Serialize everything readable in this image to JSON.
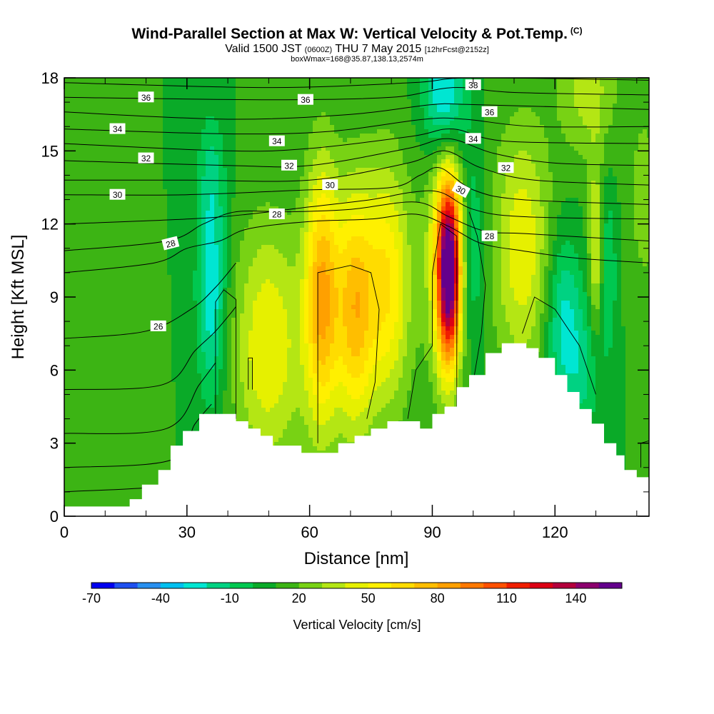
{
  "title": {
    "main": "Wind-Parallel Section at Max W: Vertical Velocity & Pot.Temp.",
    "main_suffix": "(C)",
    "valid_prefix": "Valid 1500 JST",
    "valid_z": "(0600Z)",
    "valid_date": "THU 7 May 2015",
    "valid_fcst": "[12hrFcst@2152z]",
    "box": "boxWmax=168@35.87,138.13,2574m"
  },
  "chart_data": {
    "type": "heatmap",
    "xlabel": "Distance [nm]",
    "ylabel": "Height [Kft MSL]",
    "xlim": [
      0,
      143
    ],
    "ylim": [
      0,
      18
    ],
    "x_ticks": [
      0,
      30,
      60,
      90,
      120
    ],
    "y_ticks": [
      0,
      3,
      6,
      9,
      12,
      15,
      18
    ],
    "colorbar": {
      "title": "Vertical Velocity [cm/s]",
      "tick_labels": [
        "-70",
        "-40",
        "-10",
        "20",
        "50",
        "80",
        "110",
        "140"
      ],
      "tick_values": [
        -70,
        -40,
        -10,
        20,
        50,
        80,
        110,
        140
      ],
      "range": [
        -70,
        150
      ],
      "step": 10,
      "colors": [
        "#0000f0",
        "#1e50f0",
        "#2890f0",
        "#00c0f0",
        "#00e6d2",
        "#00d282",
        "#00c850",
        "#0aaa28",
        "#3cb414",
        "#78d214",
        "#b4e614",
        "#e6f000",
        "#fff000",
        "#ffdc00",
        "#ffbe00",
        "#ffa000",
        "#ff7800",
        "#ff5000",
        "#f01e00",
        "#dc0014",
        "#b4003c",
        "#8c006e",
        "#64008c"
      ]
    },
    "terrain": [
      [
        0,
        0.4
      ],
      [
        15,
        0.4
      ],
      [
        16,
        0.7
      ],
      [
        19,
        1.3
      ],
      [
        23,
        1.9
      ],
      [
        26,
        2.9
      ],
      [
        29,
        3.5
      ],
      [
        33,
        4.2
      ],
      [
        39,
        4.2
      ],
      [
        42,
        3.9
      ],
      [
        45,
        3.6
      ],
      [
        48,
        3.3
      ],
      [
        51,
        2.9
      ],
      [
        55,
        2.9
      ],
      [
        58,
        2.6
      ],
      [
        62,
        2.6
      ],
      [
        67,
        3.0
      ],
      [
        71,
        3.3
      ],
      [
        75,
        3.6
      ],
      [
        79,
        3.9
      ],
      [
        83,
        3.9
      ],
      [
        87,
        3.6
      ],
      [
        90,
        4.2
      ],
      [
        93,
        4.5
      ],
      [
        96,
        5.3
      ],
      [
        99,
        5.8
      ],
      [
        103,
        6.7
      ],
      [
        107,
        7.1
      ],
      [
        110,
        7.1
      ],
      [
        113,
        6.9
      ],
      [
        116,
        6.5
      ],
      [
        120,
        5.8
      ],
      [
        123,
        5.1
      ],
      [
        126,
        4.4
      ],
      [
        129,
        3.8
      ],
      [
        132,
        3.0
      ],
      [
        135,
        2.5
      ],
      [
        137,
        1.9
      ],
      [
        140,
        1.6
      ],
      [
        143,
        1.6
      ]
    ],
    "w_field": [
      {
        "x": 5,
        "y": 14,
        "sx": 3,
        "sy": 2,
        "v": 18
      },
      {
        "x": 36,
        "y": 9,
        "sx": 2.5,
        "sy": 3,
        "v": -28
      },
      {
        "x": 36,
        "y": 14,
        "sx": 2.5,
        "sy": 2,
        "v": -8
      },
      {
        "x": 50,
        "y": 7,
        "sx": 6,
        "sy": 3.5,
        "v": 50
      },
      {
        "x": 63,
        "y": 9,
        "sx": 3,
        "sy": 3.8,
        "v": 80
      },
      {
        "x": 71,
        "y": 8.5,
        "sx": 3.3,
        "sy": 3.5,
        "v": 72
      },
      {
        "x": 79,
        "y": 9.5,
        "sx": 4,
        "sy": 3.5,
        "v": 60
      },
      {
        "x": 94,
        "y": 10,
        "sx": 2,
        "sy": 2.6,
        "v": 148
      },
      {
        "x": 93,
        "y": 11,
        "sx": 3.5,
        "sy": 3.6,
        "v": 45
      },
      {
        "x": 93,
        "y": 17.2,
        "sx": 3.5,
        "sy": 2,
        "v": -38
      },
      {
        "x": 100,
        "y": 11,
        "sx": 2,
        "sy": 3,
        "v": -12
      },
      {
        "x": 112,
        "y": 11,
        "sx": 5,
        "sy": 3.5,
        "v": 48
      },
      {
        "x": 122,
        "y": 8,
        "sx": 3,
        "sy": 2.5,
        "v": -24
      },
      {
        "x": 127,
        "y": 6,
        "sx": 3,
        "sy": 2,
        "v": -10
      },
      {
        "x": 130,
        "y": 11,
        "sx": 1.2,
        "sy": 2.5,
        "v": 44
      },
      {
        "x": 133,
        "y": 10,
        "sx": 1.5,
        "sy": 2.5,
        "v": -10
      },
      {
        "x": 128,
        "y": 17.5,
        "sx": 5,
        "sy": 2,
        "v": 35
      },
      {
        "x": 142,
        "y": 13,
        "sx": 3,
        "sy": 3,
        "v": 25
      }
    ],
    "theta_contours": [
      {
        "value": 26,
        "pts": [
          [
            0,
            1.0
          ],
          [
            30,
            1.4
          ],
          [
            34,
            2.8
          ],
          [
            38,
            4.2
          ]
        ],
        "label": "",
        "label_at": null
      },
      {
        "value": 26,
        "pts": [
          [
            0,
            2.0
          ],
          [
            26,
            2.3
          ],
          [
            32,
            3.8
          ],
          [
            36,
            4.6
          ]
        ],
        "label": "",
        "label_at": null
      },
      {
        "value": 26,
        "pts": [
          [
            0,
            3.4
          ],
          [
            25,
            3.6
          ],
          [
            33,
            5.4
          ],
          [
            37,
            6.3
          ]
        ],
        "label": "",
        "label_at": null
      },
      {
        "value": 26,
        "pts": [
          [
            0,
            5.2
          ],
          [
            24,
            5.4
          ],
          [
            32,
            6.8
          ],
          [
            37,
            7.6
          ],
          [
            42,
            8.6
          ]
        ],
        "label": "",
        "label_at": null
      },
      {
        "value": 26,
        "pts": [
          [
            0,
            7.3
          ],
          [
            20,
            7.6
          ],
          [
            31,
            8.5
          ],
          [
            37,
            9.4
          ],
          [
            42,
            10.4
          ]
        ],
        "label": "26",
        "label_at": [
          23,
          7.8
        ]
      },
      {
        "value": 28,
        "pts": [
          [
            0,
            10.0
          ],
          [
            22,
            10.4
          ],
          [
            30,
            11.0
          ],
          [
            38,
            11.3
          ],
          [
            45,
            11.8
          ],
          [
            60,
            12.1
          ],
          [
            75,
            12.2
          ],
          [
            86,
            12.4
          ],
          [
            94,
            11.9
          ],
          [
            102,
            11.2
          ],
          [
            112,
            10.9
          ],
          [
            125,
            10.6
          ],
          [
            143,
            10.4
          ]
        ],
        "label": "28",
        "label_at": [
          26,
          11.2
        ]
      },
      {
        "value": 28,
        "pts": [
          [
            0,
            10.9
          ],
          [
            25,
            11.3
          ],
          [
            34,
            12.0
          ],
          [
            42,
            12.5
          ],
          [
            55,
            12.5
          ],
          [
            70,
            12.6
          ],
          [
            86,
            12.9
          ],
          [
            94,
            12.3
          ],
          [
            103,
            11.7
          ],
          [
            113,
            11.6
          ],
          [
            143,
            11.3
          ]
        ],
        "label": "28",
        "label_at": [
          104,
          11.5
        ]
      },
      {
        "value": 28,
        "pts": [
          [
            0,
            12.0
          ],
          [
            30,
            12.2
          ],
          [
            45,
            12.4
          ],
          [
            60,
            12.7
          ],
          [
            75,
            13.0
          ],
          [
            85,
            13.3
          ],
          [
            92,
            13.3
          ],
          [
            100,
            12.6
          ],
          [
            112,
            12.3
          ],
          [
            143,
            12.2
          ]
        ],
        "label": "28",
        "label_at": [
          52,
          12.4
        ]
      },
      {
        "value": 30,
        "pts": [
          [
            0,
            13.2
          ],
          [
            30,
            13.2
          ],
          [
            60,
            13.4
          ],
          [
            80,
            13.5
          ],
          [
            87,
            14.0
          ],
          [
            92,
            14.3
          ],
          [
            100,
            13.4
          ],
          [
            112,
            13.0
          ],
          [
            143,
            12.8
          ]
        ],
        "label": "30",
        "label_at": [
          13,
          13.2
        ]
      },
      {
        "value": 30,
        "pts": [
          [
            0,
            13.8
          ],
          [
            30,
            13.8
          ],
          [
            60,
            13.8
          ],
          [
            84,
            14.5
          ],
          [
            93,
            15.0
          ],
          [
            102,
            14.3
          ],
          [
            115,
            13.8
          ],
          [
            143,
            13.6
          ]
        ],
        "label": "30",
        "label_at": [
          65,
          13.6
        ]
      },
      {
        "value": 32,
        "pts": [
          [
            0,
            14.6
          ],
          [
            40,
            14.4
          ],
          [
            60,
            14.4
          ],
          [
            84,
            15.1
          ],
          [
            94,
            15.5
          ],
          [
            105,
            14.9
          ],
          [
            120,
            14.5
          ],
          [
            143,
            14.4
          ]
        ],
        "label": "32",
        "label_at": [
          20,
          14.7
        ]
      },
      {
        "value": 32,
        "pts": [
          [
            0,
            15.3
          ],
          [
            40,
            15.0
          ],
          [
            60,
            15.1
          ],
          [
            85,
            15.6
          ],
          [
            95,
            15.9
          ],
          [
            108,
            15.4
          ],
          [
            143,
            15.3
          ]
        ],
        "label": "32",
        "label_at": [
          55,
          14.4
        ]
      },
      {
        "value": 34,
        "pts": [
          [
            0,
            15.9
          ],
          [
            40,
            15.7
          ],
          [
            65,
            15.8
          ],
          [
            88,
            16.3
          ],
          [
            98,
            16.3
          ],
          [
            115,
            16.0
          ],
          [
            143,
            16.0
          ]
        ],
        "label": "34",
        "label_at": [
          13,
          15.9
        ]
      },
      {
        "value": 34,
        "pts": [
          [
            0,
            16.6
          ],
          [
            40,
            16.3
          ],
          [
            70,
            16.5
          ],
          [
            90,
            16.9
          ],
          [
            100,
            16.9
          ],
          [
            143,
            16.7
          ]
        ],
        "label": "34",
        "label_at": [
          52,
          15.4
        ]
      },
      {
        "value": 36,
        "pts": [
          [
            0,
            17.2
          ],
          [
            50,
            17.1
          ],
          [
            80,
            17.2
          ],
          [
            95,
            17.6
          ],
          [
            110,
            17.4
          ],
          [
            143,
            17.3
          ]
        ],
        "label": "36",
        "label_at": [
          20,
          17.2
        ]
      },
      {
        "value": 36,
        "pts": [
          [
            0,
            17.8
          ],
          [
            50,
            17.6
          ],
          [
            85,
            17.8
          ],
          [
            100,
            18.0
          ],
          [
            143,
            17.9
          ]
        ],
        "label": "36",
        "label_at": [
          59,
          17.1
        ]
      }
    ],
    "extra_labels": [
      {
        "text": "34",
        "at": [
          100,
          15.5
        ]
      },
      {
        "text": "36",
        "at": [
          104,
          16.6
        ]
      },
      {
        "text": "38",
        "at": [
          100,
          17.7
        ]
      },
      {
        "text": "30",
        "at": [
          97,
          13.4
        ]
      },
      {
        "text": "32",
        "at": [
          108,
          14.3
        ]
      }
    ],
    "w_contours": [
      {
        "pts": [
          [
            37,
            4.2
          ],
          [
            37,
            8.8
          ],
          [
            39,
            9.3
          ],
          [
            42,
            8.9
          ],
          [
            42,
            4.0
          ]
        ]
      },
      {
        "pts": [
          [
            45,
            5.2
          ],
          [
            45,
            6.5
          ],
          [
            46,
            6.5
          ],
          [
            46,
            5.2
          ]
        ]
      },
      {
        "pts": [
          [
            62,
            3.0
          ],
          [
            62,
            10.0
          ],
          [
            70,
            10.3
          ],
          [
            75,
            10.0
          ],
          [
            77,
            8.5
          ],
          [
            76,
            5.5
          ],
          [
            74,
            4.0
          ]
        ]
      },
      {
        "pts": [
          [
            84,
            4.0
          ],
          [
            86,
            6.0
          ],
          [
            88,
            6.5
          ],
          [
            90,
            7.0
          ],
          [
            90,
            10.0
          ],
          [
            92,
            12.0
          ],
          [
            96,
            11.5
          ],
          [
            96,
            4.5
          ]
        ]
      },
      {
        "pts": [
          [
            100,
            5.5
          ],
          [
            102,
            7.5
          ],
          [
            103,
            9.5
          ],
          [
            101,
            11.5
          ],
          [
            99,
            12.5
          ]
        ]
      },
      {
        "pts": [
          [
            112,
            7.5
          ],
          [
            115,
            9.0
          ],
          [
            120,
            8.5
          ],
          [
            124,
            7.5
          ],
          [
            126,
            7.0
          ],
          [
            128,
            6.0
          ],
          [
            130,
            5.0
          ]
        ]
      },
      {
        "pts": [
          [
            141,
            2.0
          ],
          [
            141,
            3.0
          ],
          [
            143,
            3.1
          ]
        ]
      }
    ]
  }
}
